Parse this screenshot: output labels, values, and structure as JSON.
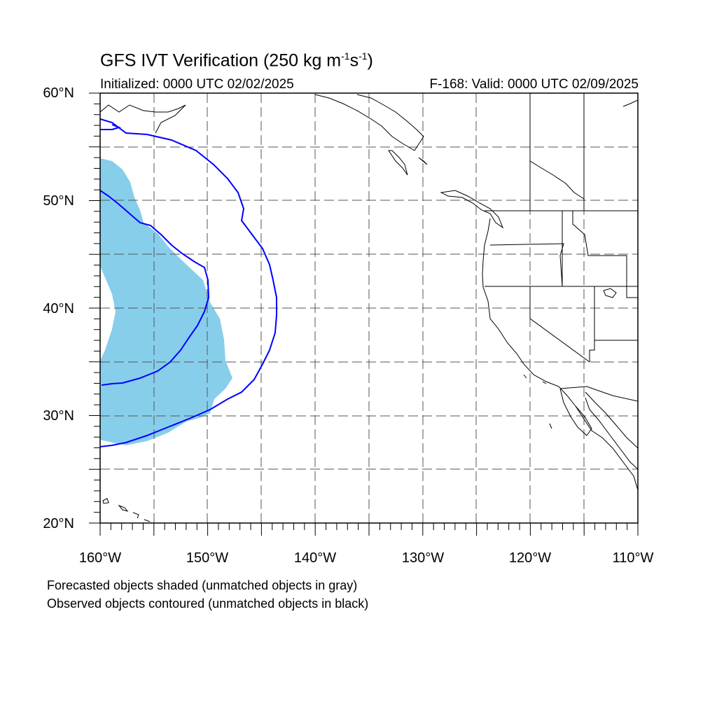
{
  "header": {
    "title_main": "GFS IVT Verification (250 kg m",
    "title_exp1": "-1",
    "title_mid": "s",
    "title_exp2": "-1",
    "title_end": ")",
    "initialized": "Initialized: 0000 UTC 02/02/2025",
    "valid": "F-168: Valid: 0000 UTC 02/09/2025"
  },
  "map": {
    "projection": "cylindrical equidistant",
    "lon_range": [
      -160,
      -110
    ],
    "lat_range": [
      20,
      60
    ],
    "grid": "dashed every 5 degrees",
    "lat_labels": [
      "60°N",
      "50°N",
      "40°N",
      "30°N",
      "20°N"
    ],
    "lon_labels": [
      "160°W",
      "150°W",
      "140°W",
      "130°W",
      "120°W",
      "110°W"
    ],
    "colors": {
      "forecast_shading": "#87ceeb",
      "observed_contour": "#0000ff",
      "coastline": "#000000",
      "grid": "#555555"
    }
  },
  "legend": {
    "forecast_note": "Forecasted objects shaded (unmatched objects in gray)",
    "observed_note": "Observed objects contoured (unmatched objects in black)"
  }
}
